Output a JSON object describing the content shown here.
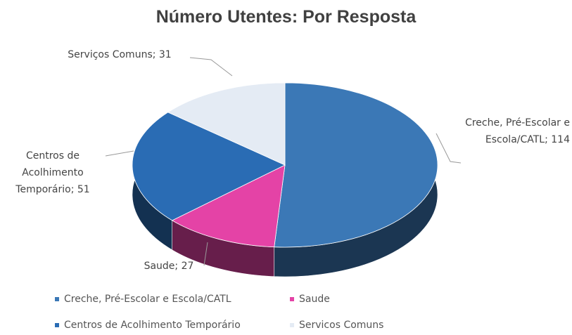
{
  "chart_data": {
    "type": "pie3d",
    "title": "Número Utentes: Por Resposta",
    "categories": [
      "Creche, Pré-Escolar e Escola/CATL",
      "Saude",
      "Centros de Acolhimento Temporário",
      "Servicos Comuns"
    ],
    "values": [
      114,
      27,
      51,
      31
    ],
    "value_labels": [
      "Creche, Pré-Escolar e Escola/CATL; 114",
      "Saude; 27",
      "Centros de Acolhimento Temporário; 51",
      "Serviços Comuns; 31"
    ],
    "colors": [
      "#3b78b6",
      "#e443a6",
      "#2a6cb4",
      "#e4ebf4"
    ],
    "legend": "bottom"
  }
}
